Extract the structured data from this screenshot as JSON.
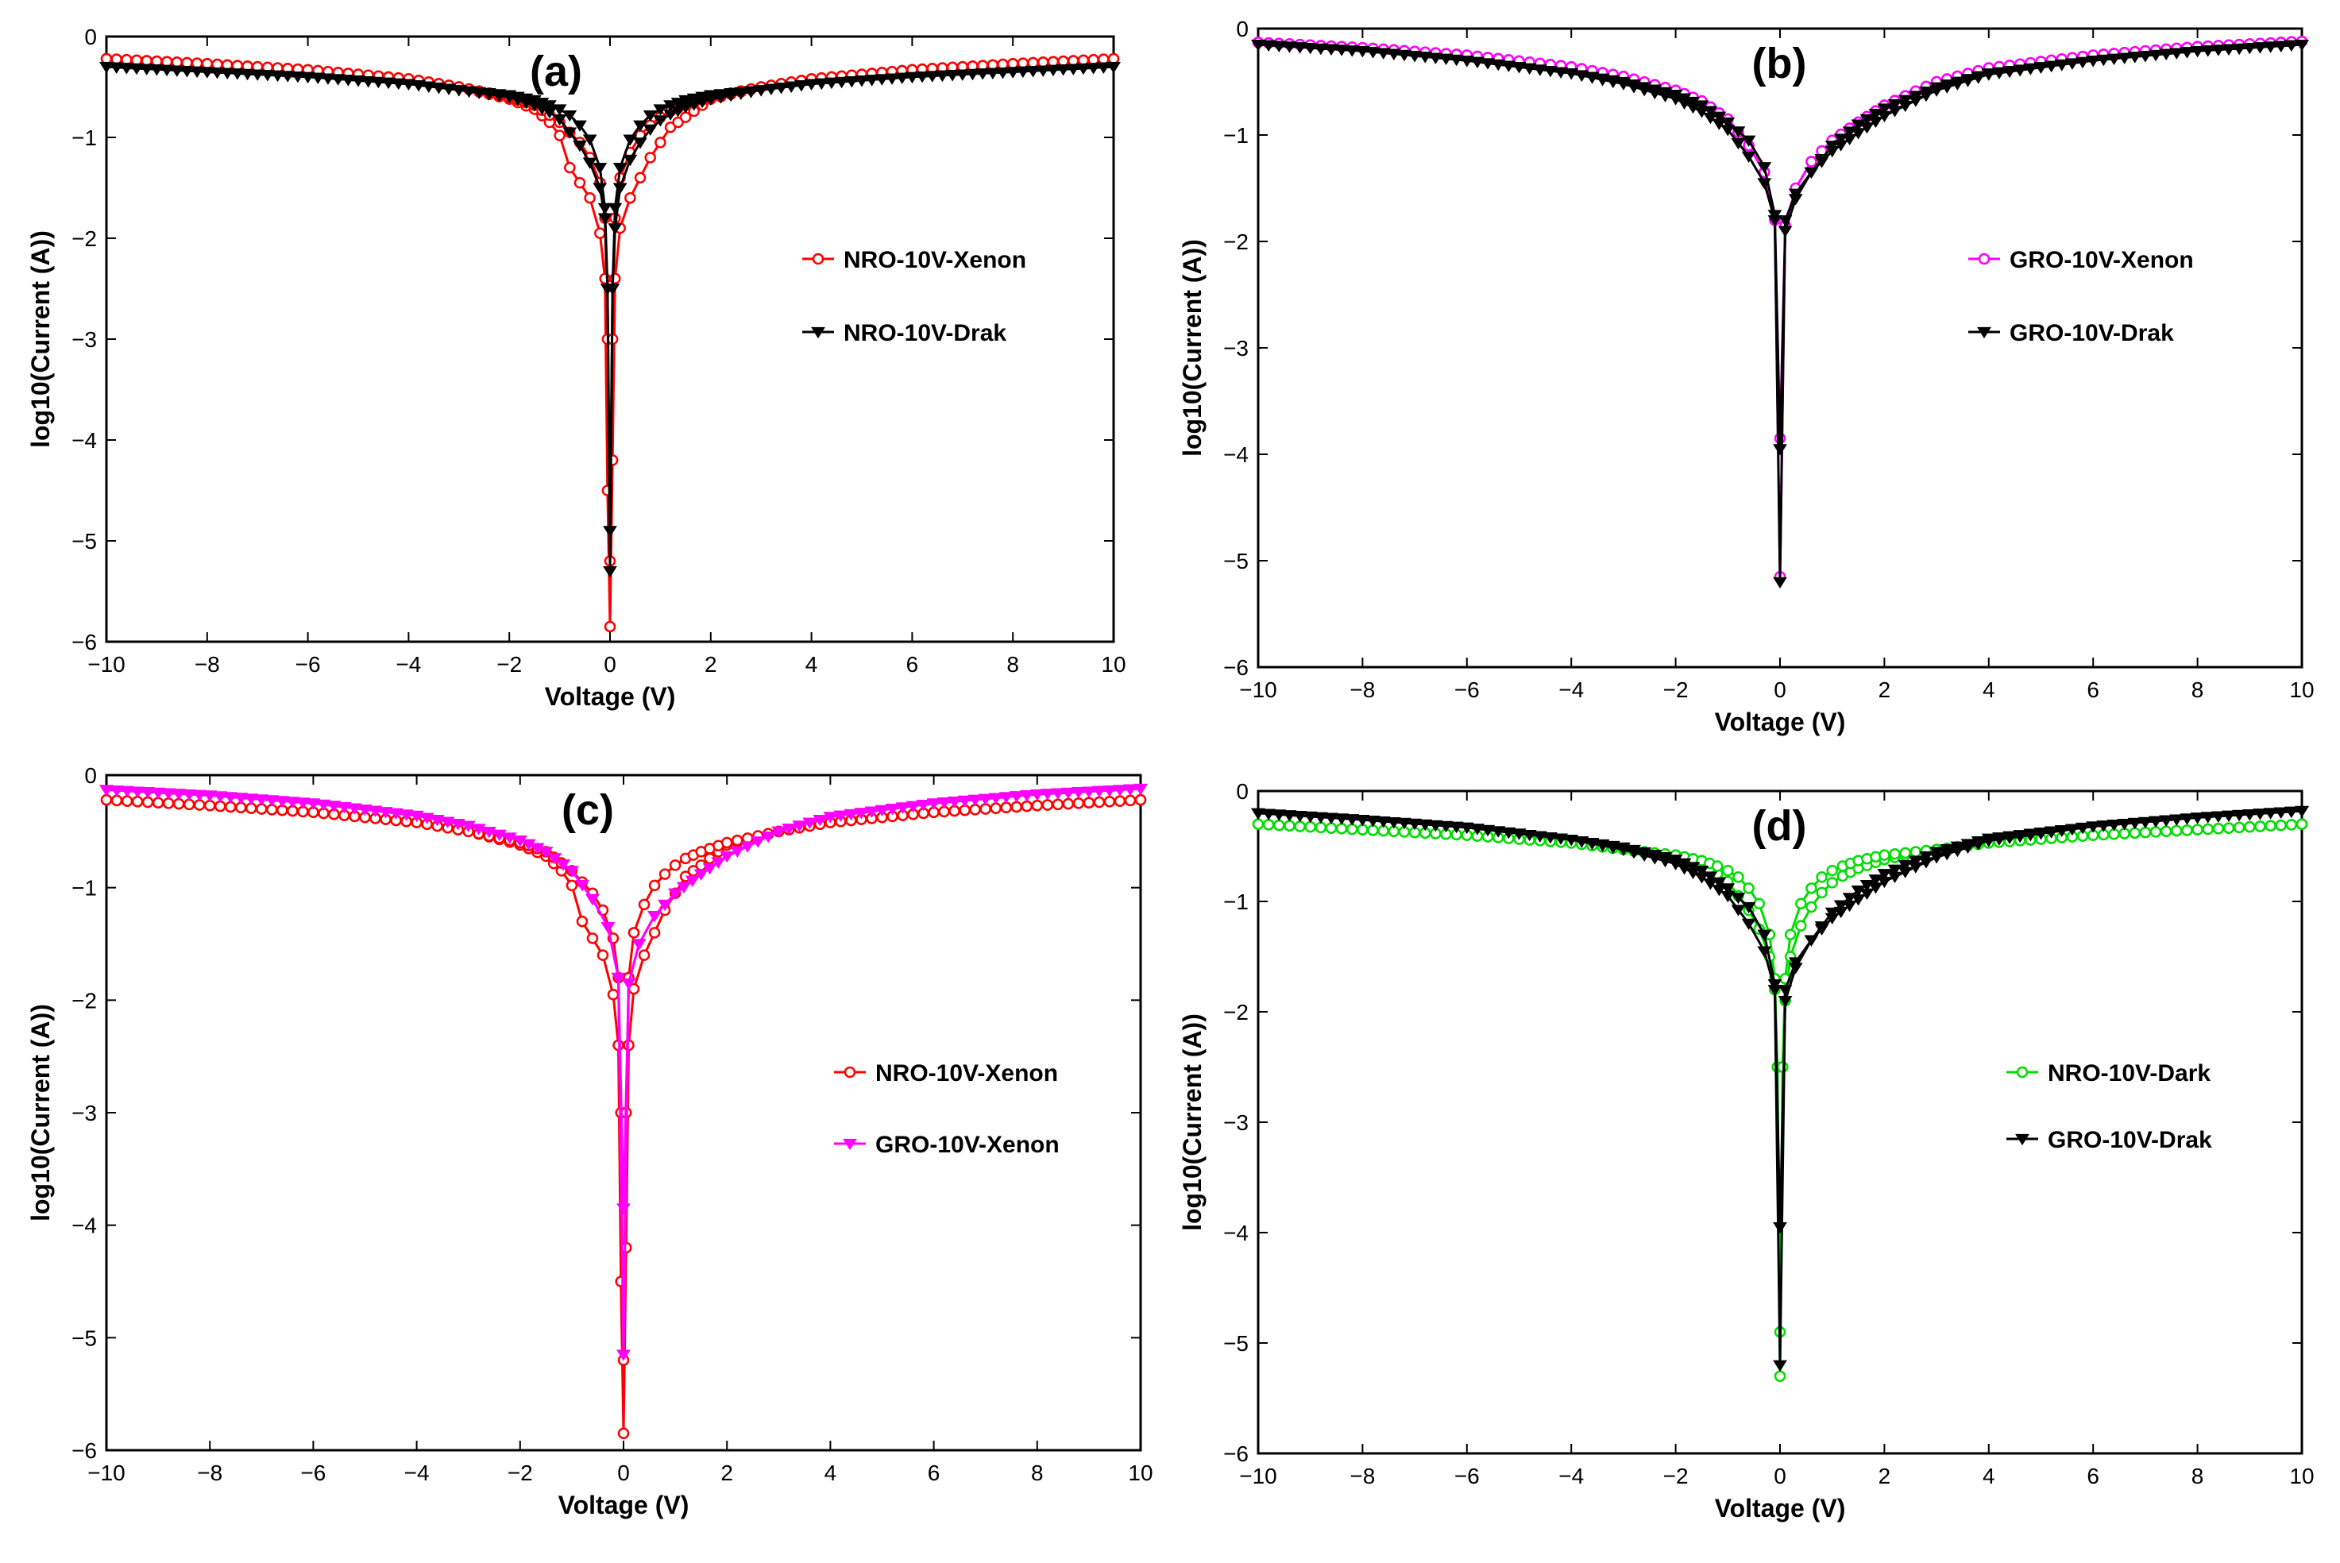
{
  "chart_data": [
    {
      "type": "line",
      "panel_label": "(a)",
      "xlabel": "Voltage (V)",
      "ylabel": "log10(Current (A))",
      "xlim": [
        -10,
        10
      ],
      "ylim": [
        -6,
        0
      ],
      "xticks": [
        -10,
        -8,
        -6,
        -4,
        -2,
        0,
        2,
        4,
        6,
        8,
        10
      ],
      "yticks": [
        0,
        -1,
        -2,
        -3,
        -4,
        -5,
        -6
      ],
      "legend_position": "center-right",
      "series": [
        {
          "name": "NRO-10V-Xenon",
          "color": "#ff0000",
          "marker": "circle",
          "x": [
            -10,
            -8,
            -6,
            -4,
            -3,
            -2,
            -1.5,
            -1.2,
            -1.0,
            -0.8,
            -0.6,
            -0.4,
            -0.2,
            -0.1,
            -0.05,
            0,
            0.05,
            0.1,
            0.2,
            0.4,
            0.6,
            0.8,
            1.0,
            1.2,
            1.5,
            2,
            3,
            4,
            6,
            8,
            10
          ],
          "y": [
            -0.22,
            -0.27,
            -0.33,
            -0.42,
            -0.5,
            -0.62,
            -0.72,
            -0.85,
            -0.98,
            -1.3,
            -1.45,
            -1.6,
            -1.95,
            -2.4,
            -4.5,
            -5.85,
            -4.2,
            -2.4,
            -1.9,
            -1.6,
            -1.4,
            -1.2,
            -1.05,
            -0.9,
            -0.8,
            -0.62,
            -0.5,
            -0.42,
            -0.33,
            -0.27,
            -0.22
          ],
          "y_ret": [
            -0.22,
            -0.27,
            -0.33,
            -0.42,
            -0.5,
            -0.6,
            -0.68,
            -0.78,
            -0.85,
            -0.95,
            -1.05,
            -1.2,
            -1.45,
            -1.8,
            -3.0,
            -5.2,
            -3.0,
            -1.8,
            -1.4,
            -1.15,
            -0.98,
            -0.88,
            -0.8,
            -0.74,
            -0.68,
            -0.6,
            -0.5,
            -0.42,
            -0.33,
            -0.27,
            -0.22
          ]
        },
        {
          "name": "NRO-10V-Drak",
          "color": "#000000",
          "marker": "triangle-down",
          "x": [
            -10,
            -8,
            -6,
            -4,
            -3,
            -2,
            -1.5,
            -1.2,
            -1.0,
            -0.8,
            -0.6,
            -0.4,
            -0.2,
            -0.1,
            -0.05,
            0,
            0.05,
            0.1,
            0.2,
            0.4,
            0.6,
            0.8,
            1.0,
            1.2,
            1.5,
            2,
            3,
            4,
            6,
            8,
            10
          ],
          "y": [
            -0.3,
            -0.35,
            -0.4,
            -0.47,
            -0.53,
            -0.6,
            -0.68,
            -0.75,
            -0.82,
            -0.95,
            -1.08,
            -1.25,
            -1.5,
            -1.8,
            -2.5,
            -5.3,
            -2.5,
            -1.9,
            -1.5,
            -1.22,
            -1.05,
            -0.92,
            -0.83,
            -0.77,
            -0.7,
            -0.62,
            -0.53,
            -0.47,
            -0.4,
            -0.35,
            -0.3
          ],
          "y_ret": [
            -0.3,
            -0.35,
            -0.4,
            -0.47,
            -0.53,
            -0.58,
            -0.63,
            -0.68,
            -0.72,
            -0.78,
            -0.88,
            -1.02,
            -1.3,
            -1.7,
            -2.5,
            -4.9,
            -2.5,
            -1.7,
            -1.3,
            -1.02,
            -0.88,
            -0.78,
            -0.72,
            -0.68,
            -0.63,
            -0.58,
            -0.53,
            -0.47,
            -0.4,
            -0.35,
            -0.3
          ]
        }
      ]
    },
    {
      "type": "line",
      "panel_label": "(b)",
      "xlabel": "Voltage (V)",
      "ylabel": "log10(Current (A))",
      "xlim": [
        -10,
        10
      ],
      "ylim": [
        -6,
        0
      ],
      "xticks": [
        -10,
        -8,
        -6,
        -4,
        -2,
        0,
        2,
        4,
        6,
        8,
        10
      ],
      "yticks": [
        0,
        -1,
        -2,
        -3,
        -4,
        -5,
        -6
      ],
      "legend_position": "center-right",
      "series": [
        {
          "name": "GRO-10V-Xenon",
          "color": "#ff00ff",
          "marker": "circle",
          "x": [
            -10,
            -8,
            -6,
            -4,
            -3,
            -2,
            -1.5,
            -1.0,
            -0.6,
            -0.3,
            -0.1,
            0,
            0.1,
            0.3,
            0.6,
            1.0,
            1.5,
            2,
            3,
            4,
            6,
            8,
            10
          ],
          "y": [
            -0.13,
            -0.18,
            -0.25,
            -0.36,
            -0.45,
            -0.58,
            -0.68,
            -0.85,
            -1.1,
            -1.35,
            -1.8,
            -5.15,
            -1.85,
            -1.5,
            -1.25,
            -1.05,
            -0.88,
            -0.72,
            -0.5,
            -0.37,
            -0.25,
            -0.17,
            -0.12
          ],
          "y_ret": [
            -0.13,
            -0.18,
            -0.25,
            -0.36,
            -0.45,
            -0.58,
            -0.68,
            -0.85,
            -1.1,
            -1.35,
            -1.8,
            -3.85,
            -1.85,
            -1.5,
            -1.25,
            -1.05,
            -0.88,
            -0.72,
            -0.5,
            -0.37,
            -0.25,
            -0.17,
            -0.12
          ]
        },
        {
          "name": "GRO-10V-Drak",
          "color": "#000000",
          "marker": "triangle-down",
          "x": [
            -10,
            -8,
            -6,
            -4,
            -3,
            -2,
            -1.5,
            -1.0,
            -0.6,
            -0.3,
            -0.1,
            0,
            0.1,
            0.3,
            0.6,
            1.0,
            1.5,
            2,
            3,
            4,
            6,
            8,
            10
          ],
          "y": [
            -0.15,
            -0.21,
            -0.3,
            -0.42,
            -0.52,
            -0.66,
            -0.78,
            -0.95,
            -1.2,
            -1.45,
            -1.8,
            -5.2,
            -1.8,
            -1.55,
            -1.35,
            -1.15,
            -0.98,
            -0.82,
            -0.58,
            -0.43,
            -0.3,
            -0.21,
            -0.15
          ],
          "y_ret": [
            -0.15,
            -0.21,
            -0.3,
            -0.42,
            -0.5,
            -0.62,
            -0.72,
            -0.88,
            -1.05,
            -1.3,
            -1.75,
            -3.95,
            -1.9,
            -1.6,
            -1.35,
            -1.1,
            -0.9,
            -0.75,
            -0.55,
            -0.42,
            -0.3,
            -0.21,
            -0.15
          ]
        }
      ]
    },
    {
      "type": "line",
      "panel_label": "(c)",
      "xlabel": "Voltage (V)",
      "ylabel": "log10(Current (A))",
      "xlim": [
        -10,
        10
      ],
      "ylim": [
        -6,
        0
      ],
      "xticks": [
        -10,
        -8,
        -6,
        -4,
        -2,
        0,
        2,
        4,
        6,
        8,
        10
      ],
      "yticks": [
        0,
        -1,
        -2,
        -3,
        -4,
        -5,
        -6
      ],
      "legend_position": "center-right",
      "series": [
        {
          "name": "NRO-10V-Xenon",
          "color": "#ff0000",
          "marker": "circle",
          "x": [
            -10,
            -8,
            -6,
            -4,
            -3,
            -2,
            -1.5,
            -1.2,
            -1.0,
            -0.8,
            -0.6,
            -0.4,
            -0.2,
            -0.1,
            -0.05,
            0,
            0.05,
            0.1,
            0.2,
            0.4,
            0.6,
            0.8,
            1.0,
            1.2,
            1.5,
            2,
            3,
            4,
            6,
            8,
            10
          ],
          "y": [
            -0.22,
            -0.27,
            -0.33,
            -0.42,
            -0.5,
            -0.62,
            -0.72,
            -0.85,
            -0.98,
            -1.3,
            -1.45,
            -1.6,
            -1.95,
            -2.4,
            -4.5,
            -5.85,
            -4.2,
            -2.4,
            -1.9,
            -1.6,
            -1.4,
            -1.2,
            -1.05,
            -0.9,
            -0.8,
            -0.62,
            -0.5,
            -0.42,
            -0.33,
            -0.27,
            -0.22
          ],
          "y_ret": [
            -0.22,
            -0.27,
            -0.33,
            -0.42,
            -0.5,
            -0.6,
            -0.68,
            -0.78,
            -0.85,
            -0.95,
            -1.05,
            -1.2,
            -1.45,
            -1.8,
            -3.0,
            -5.2,
            -3.0,
            -1.8,
            -1.4,
            -1.15,
            -0.98,
            -0.88,
            -0.8,
            -0.74,
            -0.68,
            -0.6,
            -0.5,
            -0.42,
            -0.33,
            -0.27,
            -0.22
          ]
        },
        {
          "name": "GRO-10V-Xenon",
          "color": "#ff00ff",
          "marker": "triangle-down",
          "x": [
            -10,
            -8,
            -6,
            -4,
            -3,
            -2,
            -1.5,
            -1.0,
            -0.6,
            -0.3,
            -0.1,
            0,
            0.1,
            0.3,
            0.6,
            1.0,
            1.5,
            2,
            3,
            4,
            6,
            8,
            10
          ],
          "y": [
            -0.13,
            -0.18,
            -0.25,
            -0.36,
            -0.45,
            -0.58,
            -0.68,
            -0.85,
            -1.1,
            -1.35,
            -1.8,
            -5.15,
            -1.85,
            -1.5,
            -1.25,
            -1.05,
            -0.88,
            -0.72,
            -0.5,
            -0.37,
            -0.25,
            -0.17,
            -0.12
          ],
          "y_ret": [
            -0.13,
            -0.18,
            -0.25,
            -0.36,
            -0.45,
            -0.58,
            -0.68,
            -0.85,
            -1.1,
            -1.35,
            -1.8,
            -3.85,
            -1.85,
            -1.5,
            -1.25,
            -1.05,
            -0.88,
            -0.72,
            -0.5,
            -0.37,
            -0.25,
            -0.17,
            -0.12
          ]
        }
      ]
    },
    {
      "type": "line",
      "panel_label": "(d)",
      "xlabel": "Voltage (V)",
      "ylabel": "log10(Current (A))",
      "xlim": [
        -10,
        10
      ],
      "ylim": [
        -6,
        0
      ],
      "xticks": [
        -10,
        -8,
        -6,
        -4,
        -2,
        0,
        2,
        4,
        6,
        8,
        10
      ],
      "yticks": [
        0,
        -1,
        -2,
        -3,
        -4,
        -5,
        -6
      ],
      "legend_position": "center-right",
      "series": [
        {
          "name": "NRO-10V-Dark",
          "color": "#00dd00",
          "marker": "circle",
          "x": [
            -10,
            -8,
            -6,
            -4,
            -3,
            -2,
            -1.5,
            -1.2,
            -1.0,
            -0.8,
            -0.6,
            -0.4,
            -0.2,
            -0.1,
            -0.05,
            0,
            0.05,
            0.1,
            0.2,
            0.4,
            0.6,
            0.8,
            1.0,
            1.2,
            1.5,
            2,
            3,
            4,
            6,
            8,
            10
          ],
          "y": [
            -0.3,
            -0.35,
            -0.4,
            -0.47,
            -0.53,
            -0.6,
            -0.68,
            -0.75,
            -0.82,
            -0.95,
            -1.08,
            -1.25,
            -1.5,
            -1.8,
            -2.5,
            -5.3,
            -2.5,
            -1.9,
            -1.5,
            -1.22,
            -1.05,
            -0.92,
            -0.83,
            -0.77,
            -0.7,
            -0.62,
            -0.53,
            -0.47,
            -0.4,
            -0.35,
            -0.3
          ],
          "y_ret": [
            -0.3,
            -0.35,
            -0.4,
            -0.47,
            -0.53,
            -0.58,
            -0.63,
            -0.68,
            -0.72,
            -0.78,
            -0.88,
            -1.02,
            -1.3,
            -1.7,
            -2.5,
            -4.9,
            -2.5,
            -1.7,
            -1.3,
            -1.02,
            -0.88,
            -0.78,
            -0.72,
            -0.68,
            -0.63,
            -0.58,
            -0.53,
            -0.47,
            -0.4,
            -0.35,
            -0.3
          ]
        },
        {
          "name": "GRO-10V-Drak",
          "color": "#000000",
          "marker": "triangle-down",
          "x": [
            -10,
            -8,
            -6,
            -4,
            -3,
            -2,
            -1.5,
            -1.0,
            -0.6,
            -0.3,
            -0.1,
            0,
            0.1,
            0.3,
            0.6,
            1.0,
            1.5,
            2,
            3,
            4,
            6,
            8,
            10
          ],
          "y": [
            -0.2,
            -0.26,
            -0.33,
            -0.44,
            -0.53,
            -0.66,
            -0.78,
            -0.95,
            -1.2,
            -1.45,
            -1.8,
            -5.2,
            -1.8,
            -1.55,
            -1.35,
            -1.15,
            -0.98,
            -0.82,
            -0.6,
            -0.45,
            -0.32,
            -0.24,
            -0.18
          ],
          "y_ret": [
            -0.2,
            -0.26,
            -0.33,
            -0.44,
            -0.51,
            -0.62,
            -0.72,
            -0.88,
            -1.05,
            -1.3,
            -1.75,
            -3.95,
            -1.9,
            -1.6,
            -1.35,
            -1.1,
            -0.9,
            -0.75,
            -0.55,
            -0.43,
            -0.32,
            -0.24,
            -0.18
          ]
        }
      ]
    }
  ]
}
